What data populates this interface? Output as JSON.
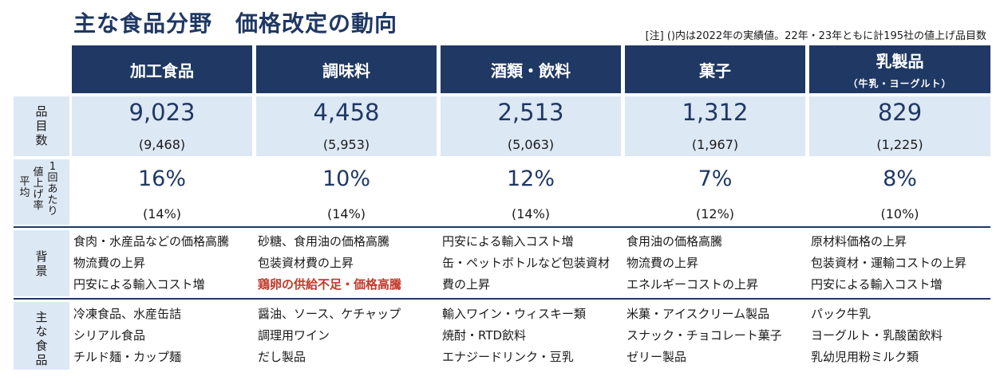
{
  "title": "主な食品分野　価格改定の動向",
  "note": "[注] ()内は2022年の実績値。22年・23年ともに計195社の値上げ品目数",
  "row_labels": {
    "items": "品目数",
    "rate_main": "値上げ率",
    "rate_side1": "1回あたり",
    "rate_side2": "平均",
    "background": "背景",
    "products": "主な食品"
  },
  "categories": [
    {
      "name": "加工食品",
      "sub": "",
      "items": "9,023",
      "items_prev": "(9,468)",
      "rate": "16%",
      "rate_prev": "(14%)",
      "background": [
        "食肉・水産品などの価格高騰",
        "物流費の上昇",
        "円安による輸入コスト増"
      ],
      "products": [
        "冷凍食品、水産缶詰",
        "シリアル食品",
        "チルド麺・カップ麺"
      ]
    },
    {
      "name": "調味料",
      "sub": "",
      "items": "4,458",
      "items_prev": "(5,953)",
      "rate": "10%",
      "rate_prev": "(14%)",
      "background": [
        "砂糖、食用油の価格高騰",
        "包装資材費の上昇",
        "鶏卵の供給不足・価格高騰"
      ],
      "products": [
        "醤油、ソース、ケチャップ",
        "調理用ワイン",
        "だし製品"
      ]
    },
    {
      "name": "酒類・飲料",
      "sub": "",
      "items": "2,513",
      "items_prev": "(5,063)",
      "rate": "12%",
      "rate_prev": "(14%)",
      "background": [
        "円安による輸入コスト増",
        "缶・ペットボトルなど包装資材",
        "費の上昇"
      ],
      "products": [
        "輸入ワイン・ウィスキー類",
        "焼酎・RTD飲料",
        "エナジードリンク・豆乳"
      ]
    },
    {
      "name": "菓子",
      "sub": "",
      "items": "1,312",
      "items_prev": "(1,967)",
      "rate": "7%",
      "rate_prev": "(12%)",
      "background": [
        "食用油の価格高騰",
        "物流費の上昇",
        "エネルギーコストの上昇"
      ],
      "products": [
        "米菓・アイスクリーム製品",
        "スナック・チョコレート菓子",
        "ゼリー製品"
      ]
    },
    {
      "name": "乳製品",
      "sub": "（牛乳・ヨーグルト）",
      "items": "829",
      "items_prev": "(1,225)",
      "rate": "8%",
      "rate_prev": "(10%)",
      "background": [
        "原材料価格の上昇",
        "包装資材・運輸コストの上昇",
        "円安による輸入コスト増"
      ],
      "products": [
        "パック牛乳",
        "ヨーグルト・乳酸菌飲料",
        "乳幼児用粉ミルク類"
      ]
    }
  ],
  "colors": {
    "navy": "#1f3864",
    "light": "#dde8f5",
    "red": "#c0392b"
  }
}
